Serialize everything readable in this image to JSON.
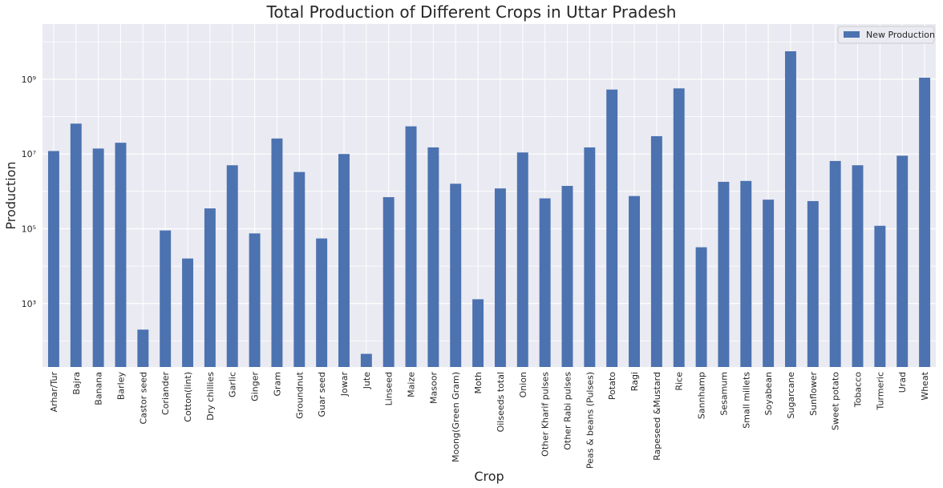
{
  "chart_data": {
    "type": "bar",
    "title": "Total Production of Different Crops in Uttar Pradesh",
    "xlabel": "Crop",
    "ylabel": "Production",
    "yscale": "log",
    "ylim": [
      20,
      30000000000
    ],
    "yticks": [
      {
        "value": 1000,
        "label": "10³"
      },
      {
        "value": 100000,
        "label": "10⁵"
      },
      {
        "value": 10000000,
        "label": "10⁷"
      },
      {
        "value": 1000000000,
        "label": "10⁹"
      }
    ],
    "grid": true,
    "legend_position": "top-right",
    "bar_color": "#4c72b0",
    "plot_background": "#eaeaf2",
    "categories": [
      "Arhar/Tur",
      "Bajra",
      "Banana",
      "Barley",
      "Castor seed",
      "Coriander",
      "Cotton(lint)",
      "Dry chillies",
      "Garlic",
      "Ginger",
      "Gram",
      "Groundnut",
      "Guar seed",
      "Jowar",
      "Jute",
      "Linseed",
      "Maize",
      "Masoor",
      "Moong(Green Gram)",
      "Moth",
      "Oilseeds total",
      "Onion",
      "Other Kharif pulses",
      "Other Rabi pulses",
      "Peas & beans (Pulses)",
      "Potato",
      "Ragi",
      "Rapeseed &Mustard",
      "Rice",
      "Sannhamp",
      "Sesamum",
      "Small millets",
      "Soyabean",
      "Sugarcane",
      "Sunflower",
      "Sweet potato",
      "Tobacco",
      "Turmeric",
      "Urad",
      "Wheat"
    ],
    "series": [
      {
        "name": "New Production",
        "values": [
          12000000,
          65000000,
          14000000,
          20000000,
          200,
          90000,
          16000,
          350000,
          5000000,
          75000,
          26000000,
          3300000,
          55000,
          10000000,
          45,
          700000,
          55000000,
          15000000,
          1600000,
          1300,
          1200000,
          11000000,
          650000,
          1400000,
          15000000,
          530000000,
          750000,
          30000000,
          570000000,
          32000,
          1800000,
          1900000,
          600000,
          5600000000,
          550000,
          6500000,
          5000000,
          120000,
          9000000,
          1100000000
        ]
      }
    ]
  }
}
